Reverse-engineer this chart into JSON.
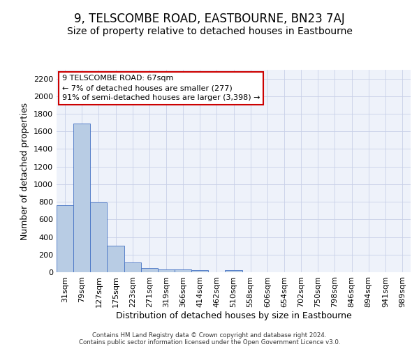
{
  "title": "9, TELSCOMBE ROAD, EASTBOURNE, BN23 7AJ",
  "subtitle": "Size of property relative to detached houses in Eastbourne",
  "xlabel": "Distribution of detached houses by size in Eastbourne",
  "ylabel": "Number of detached properties",
  "categories": [
    "31sqm",
    "79sqm",
    "127sqm",
    "175sqm",
    "223sqm",
    "271sqm",
    "319sqm",
    "366sqm",
    "414sqm",
    "462sqm",
    "510sqm",
    "558sqm",
    "606sqm",
    "654sqm",
    "702sqm",
    "750sqm",
    "798sqm",
    "846sqm",
    "894sqm",
    "941sqm",
    "989sqm"
  ],
  "values": [
    760,
    1690,
    790,
    300,
    115,
    45,
    32,
    28,
    20,
    0,
    22,
    0,
    0,
    0,
    0,
    0,
    0,
    0,
    0,
    0,
    0
  ],
  "bar_color": "#b8cce4",
  "bar_edge_color": "#4472c4",
  "ylim": [
    0,
    2300
  ],
  "yticks": [
    0,
    200,
    400,
    600,
    800,
    1000,
    1200,
    1400,
    1600,
    1800,
    2000,
    2200
  ],
  "annotation_title": "9 TELSCOMBE ROAD: 67sqm",
  "annotation_line2": "← 7% of detached houses are smaller (277)",
  "annotation_line3": "91% of semi-detached houses are larger (3,398) →",
  "annotation_box_color": "#ffffff",
  "annotation_border_color": "#cc0000",
  "footer_line1": "Contains HM Land Registry data © Crown copyright and database right 2024.",
  "footer_line2": "Contains public sector information licensed under the Open Government Licence v3.0.",
  "bg_color": "#eef2fa",
  "grid_color": "#c8d0e8",
  "title_fontsize": 12,
  "subtitle_fontsize": 10,
  "axis_label_fontsize": 9,
  "tick_fontsize": 8,
  "annotation_fontsize": 8
}
